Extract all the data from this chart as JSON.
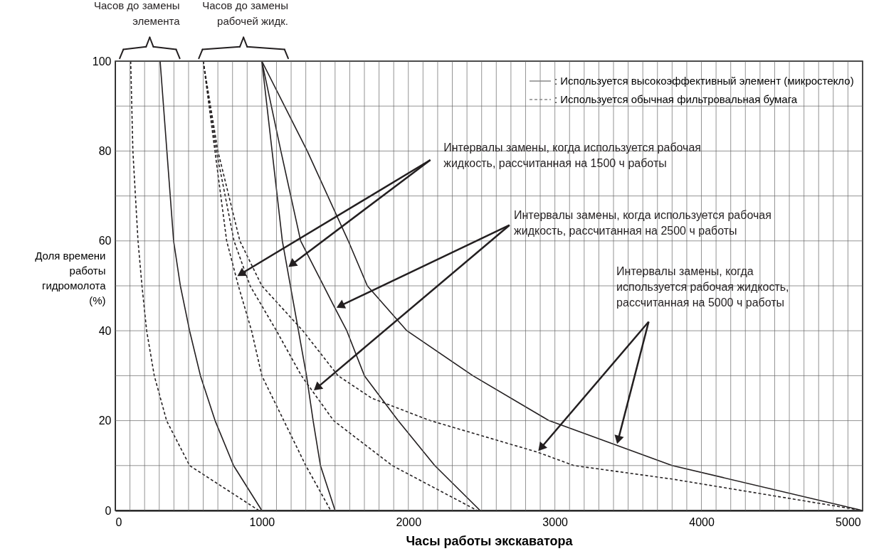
{
  "chart_data": {
    "type": "line",
    "xlabel": "Часы работы экскаватора",
    "ylabel": "Доля времени\nработы\nгидромолота\n(%)",
    "xlim": [
      0,
      5100
    ],
    "ylim": [
      0,
      100
    ],
    "xticks": [
      0,
      {
        "value": 100,
        "label": null
      },
      {
        "value": 200,
        "label": null
      },
      {
        "value": 300,
        "label": null
      },
      {
        "value": 400,
        "label": null
      },
      {
        "value": 500,
        "label": null
      },
      {
        "value": 600,
        "label": null
      },
      {
        "value": 700,
        "label": null
      },
      {
        "value": 800,
        "label": null
      },
      {
        "value": 900,
        "label": null
      },
      1000,
      {
        "value": 1100,
        "label": null
      },
      {
        "value": 1200,
        "label": null
      },
      {
        "value": 1300,
        "label": null
      },
      {
        "value": 1400,
        "label": null
      },
      {
        "value": 1500,
        "label": null
      },
      {
        "value": 1600,
        "label": null
      },
      {
        "value": 1700,
        "label": null
      },
      {
        "value": 1800,
        "label": null
      },
      {
        "value": 1900,
        "label": null
      },
      2000,
      {
        "value": 2100,
        "label": null
      },
      {
        "value": 2200,
        "label": null
      },
      {
        "value": 2300,
        "label": null
      },
      {
        "value": 2400,
        "label": null
      },
      {
        "value": 2500,
        "label": null
      },
      {
        "value": 2600,
        "label": null
      },
      {
        "value": 2700,
        "label": null
      },
      {
        "value": 2800,
        "label": null
      },
      {
        "value": 2900,
        "label": null
      },
      3000,
      {
        "value": 3100,
        "label": null
      },
      {
        "value": 3200,
        "label": null
      },
      {
        "value": 3300,
        "label": null
      },
      {
        "value": 3400,
        "label": null
      },
      {
        "value": 3500,
        "label": null
      },
      {
        "value": 3600,
        "label": null
      },
      {
        "value": 3700,
        "label": null
      },
      {
        "value": 3800,
        "label": null
      },
      {
        "value": 3900,
        "label": null
      },
      4000,
      {
        "value": 4100,
        "label": null
      },
      {
        "value": 4200,
        "label": null
      },
      {
        "value": 4300,
        "label": null
      },
      {
        "value": 4400,
        "label": null
      },
      {
        "value": 4500,
        "label": null
      },
      {
        "value": 4600,
        "label": null
      },
      {
        "value": 4700,
        "label": null
      },
      {
        "value": 4800,
        "label": null
      },
      {
        "value": 4900,
        "label": null
      },
      5000,
      {
        "value": 5100,
        "label": null
      }
    ],
    "yticks": [
      0,
      {
        "value": 10,
        "label": null
      },
      20,
      {
        "value": 30,
        "label": null
      },
      40,
      {
        "value": 50,
        "label": null
      },
      60,
      {
        "value": 70,
        "label": null
      },
      80,
      {
        "value": 90,
        "label": null
      },
      100
    ],
    "grid": true,
    "legend": "top right",
    "annotations": [
      "Часов до замены\nэлемента",
      "Часов до замены\nрабочей жидк.",
      {
        "text": "Интервалы замены, когда используется рабочая\nжидкость, рассчитанная на 1500 ч работы",
        "x": 824,
        "y": 52
      },
      {
        "text": "Интервалы замены, когда используется рабочая\nжидкость, рассчитанная на 2500 ч работы",
        "x": 1500,
        "y": 45
      },
      {
        "text": "Интервалы замены, когда\nиспользуется рабочая жидкость,\nрассчитанная на 5000 ч работы",
        "x": 2880,
        "y": 13
      }
    ],
    "series": [
      {
        "name": ": Используется высокоэффективный элемент (микростекло)",
        "color": "#231f20",
        "line_style": "solid",
        "x": [
          306,
          352,
          398,
          444,
          507,
          581,
          681,
          807,
          1000
        ],
        "values": [
          100,
          80,
          60,
          50,
          40,
          30,
          20,
          10,
          0
        ]
      },
      {
        "name": ": Используется обычная фильтровальная бумага",
        "color": "#231f20",
        "line_style": "dashed",
        "x": [
          105,
          120,
          155,
          182,
          214,
          266,
          350,
          507,
          980
        ],
        "values": [
          100,
          80,
          60,
          50,
          40,
          30,
          20,
          10,
          0
        ]
      },
      {
        "color": "#231f20",
        "line_style": "solid",
        "x": [
          1000,
          1140,
          1250,
          1305,
          1350,
          1400,
          1500
        ],
        "values": [
          100,
          60,
          40,
          30,
          20,
          10,
          0
        ]
      },
      {
        "color": "#231f20",
        "line_style": "dashed",
        "x": [
          600,
          680,
          760,
          840,
          930,
          1000,
          1150,
          1300,
          1470
        ],
        "values": [
          100,
          80,
          60,
          50,
          40,
          30,
          20,
          10,
          0
        ]
      },
      {
        "color": "#231f20",
        "line_style": "solid",
        "x": [
          1000,
          1130,
          1265,
          1500,
          1580,
          1700,
          1930,
          2180,
          2490
        ],
        "values": [
          100,
          80,
          60,
          45,
          40,
          30,
          20,
          10,
          0
        ]
      },
      {
        "color": "#231f20",
        "line_style": "dashed",
        "x": [
          600,
          690,
          810,
          920,
          1100,
          1270,
          1490,
          1890,
          2470
        ],
        "values": [
          100,
          80,
          60,
          50,
          40,
          30,
          20,
          10,
          0
        ]
      },
      {
        "color": "#231f20",
        "line_style": "solid",
        "x": [
          1000,
          1310,
          1590,
          1720,
          1990,
          2440,
          2960,
          3800,
          5100
        ],
        "values": [
          100,
          80,
          60,
          50,
          40,
          30,
          20,
          10,
          0
        ]
      },
      {
        "color": "#231f20",
        "line_style": "dashed",
        "x": [
          600,
          700,
          850,
          1000,
          1280,
          1520,
          1750,
          2150,
          2880,
          3130,
          3800,
          5100
        ],
        "values": [
          100,
          80,
          60,
          50,
          40,
          30,
          25,
          20,
          13,
          10,
          7,
          0
        ]
      }
    ]
  }
}
